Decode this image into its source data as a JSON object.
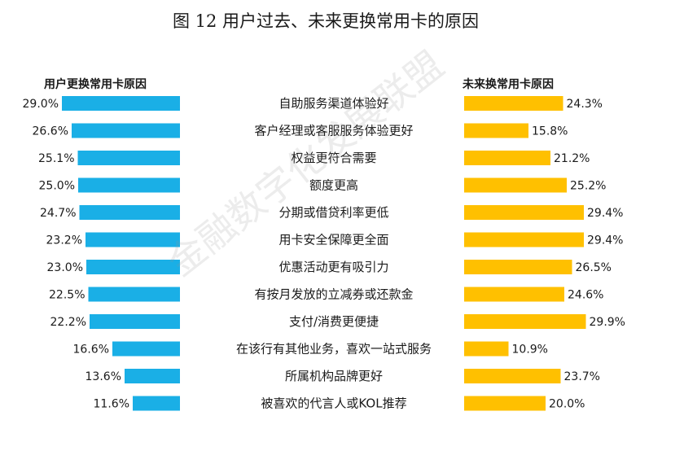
{
  "title": "图 12 用户过去、未来更换常用卡的原因",
  "watermark": "金融数字化发展联盟",
  "chart_data": [
    {
      "type": "bar",
      "orientation": "horizontal",
      "title": "用户更换常用卡原因",
      "color": "#1AAFE6",
      "categories": [
        "自助服务渠道体验好",
        "客户经理或客服服务体验更好",
        "权益更符合需要",
        "额度更高",
        "分期或借贷利率更低",
        "用卡安全保障更全面",
        "优惠活动更有吸引力",
        "有按月发放的立减券或还款金",
        "支付/消费更便捷",
        "在该行有其他业务，喜欢一站式服务",
        "所属机构品牌更好",
        "被喜欢的代言人或KOL推荐"
      ],
      "values": [
        29.0,
        26.6,
        25.1,
        25.0,
        24.7,
        23.2,
        23.0,
        22.5,
        22.2,
        16.6,
        13.6,
        11.6
      ],
      "value_labels": [
        "29.0%",
        "26.6%",
        "25.1%",
        "25.0%",
        "24.7%",
        "23.2%",
        "23.0%",
        "22.5%",
        "22.2%",
        "16.6%",
        "13.6%",
        "11.6%"
      ]
    },
    {
      "type": "bar",
      "orientation": "horizontal",
      "title": "未来换常用卡原因",
      "color": "#FFC000",
      "categories": [
        "自助服务渠道体验好",
        "客户经理或客服服务体验更好",
        "权益更符合需要",
        "额度更高",
        "分期或借贷利率更低",
        "用卡安全保障更全面",
        "优惠活动更有吸引力",
        "有按月发放的立减券或还款金",
        "支付/消费更便捷",
        "在该行有其他业务，喜欢一站式服务",
        "所属机构品牌更好",
        "被喜欢的代言人或KOL推荐"
      ],
      "values": [
        24.3,
        15.8,
        21.2,
        25.2,
        29.4,
        29.4,
        26.5,
        24.6,
        29.9,
        10.9,
        23.7,
        20.0
      ],
      "value_labels": [
        "24.3%",
        "15.8%",
        "21.2%",
        "25.2%",
        "29.4%",
        "29.4%",
        "26.5%",
        "24.6%",
        "29.9%",
        "10.9%",
        "23.7%",
        "20.0%"
      ]
    }
  ]
}
